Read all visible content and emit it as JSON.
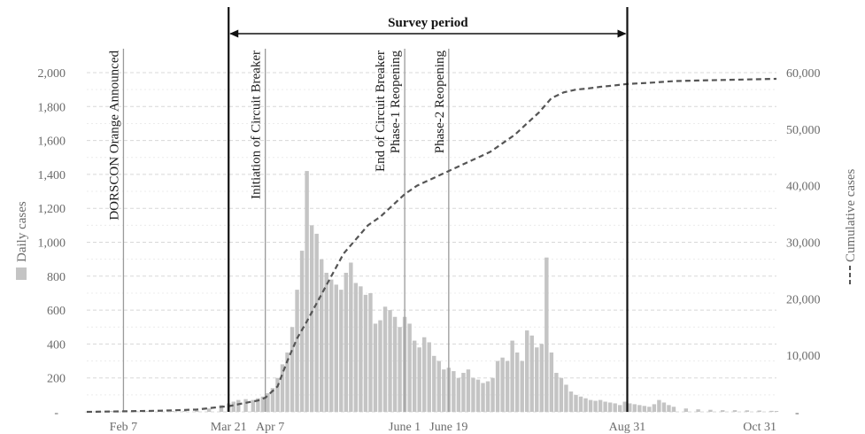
{
  "chart_data": {
    "type": "bar",
    "x_unit": "day",
    "x_range": [
      "Jan 23",
      "Oct 31"
    ],
    "y_left": {
      "label": "Daily cases",
      "range": [
        0,
        2000
      ],
      "ticks": [
        "-",
        "200",
        "400",
        "600",
        "800",
        "1,000",
        "1,200",
        "1,400",
        "1,600",
        "1,800",
        "2,000"
      ]
    },
    "y_right": {
      "label": "Cumulative cases",
      "range": [
        0,
        60000
      ],
      "ticks": [
        "-",
        "10,000",
        "20,000",
        "30,000",
        "40,000",
        "50,000",
        "60,000"
      ]
    },
    "x_ticks": [
      {
        "label": "Feb 7",
        "day": 15
      },
      {
        "label": "Mar 21",
        "day": 58
      },
      {
        "label": "Apr 7",
        "day": 75
      },
      {
        "label": "June 1",
        "day": 130
      },
      {
        "label": "June 19",
        "day": 148
      },
      {
        "label": "Aug 31",
        "day": 221
      },
      {
        "label": "Oct 31",
        "day": 282
      }
    ],
    "events": [
      {
        "lines": [
          "DORSCON Orange Announced"
        ],
        "day": 15,
        "bold": false
      },
      {
        "lines": [
          "Initiation of Circuit Breaker"
        ],
        "day": 73,
        "bold": false
      },
      {
        "lines": [
          "End of Circuit Breaker",
          "Phase-1 Reopening"
        ],
        "day": 130,
        "bold": false
      },
      {
        "lines": [
          "Phase-2 Reopening"
        ],
        "day": 148,
        "bold": false
      }
    ],
    "survey_period": {
      "label": "Survey period",
      "start_day": 58,
      "end_day": 221
    },
    "series": [
      {
        "name": "Daily cases",
        "kind": "bar",
        "color": "#c4c4c4",
        "points": [
          [
            0,
            1
          ],
          [
            5,
            3
          ],
          [
            10,
            5
          ],
          [
            15,
            4
          ],
          [
            20,
            6
          ],
          [
            25,
            4
          ],
          [
            30,
            3
          ],
          [
            35,
            5
          ],
          [
            40,
            6
          ],
          [
            45,
            8
          ],
          [
            50,
            20
          ],
          [
            55,
            40
          ],
          [
            58,
            50
          ],
          [
            60,
            60
          ],
          [
            62,
            70
          ],
          [
            65,
            75
          ],
          [
            68,
            70
          ],
          [
            70,
            80
          ],
          [
            72,
            90
          ],
          [
            74,
            110
          ],
          [
            76,
            140
          ],
          [
            78,
            200
          ],
          [
            80,
            280
          ],
          [
            82,
            350
          ],
          [
            84,
            500
          ],
          [
            86,
            720
          ],
          [
            88,
            950
          ],
          [
            90,
            1420
          ],
          [
            92,
            1100
          ],
          [
            94,
            1050
          ],
          [
            96,
            900
          ],
          [
            98,
            820
          ],
          [
            100,
            780
          ],
          [
            102,
            750
          ],
          [
            104,
            720
          ],
          [
            106,
            820
          ],
          [
            108,
            880
          ],
          [
            110,
            760
          ],
          [
            112,
            740
          ],
          [
            114,
            690
          ],
          [
            116,
            700
          ],
          [
            118,
            520
          ],
          [
            120,
            540
          ],
          [
            122,
            620
          ],
          [
            124,
            600
          ],
          [
            126,
            560
          ],
          [
            128,
            500
          ],
          [
            130,
            560
          ],
          [
            132,
            520
          ],
          [
            134,
            420
          ],
          [
            136,
            380
          ],
          [
            138,
            440
          ],
          [
            140,
            410
          ],
          [
            142,
            330
          ],
          [
            144,
            300
          ],
          [
            146,
            250
          ],
          [
            148,
            260
          ],
          [
            150,
            240
          ],
          [
            152,
            200
          ],
          [
            154,
            230
          ],
          [
            156,
            250
          ],
          [
            158,
            200
          ],
          [
            160,
            190
          ],
          [
            162,
            170
          ],
          [
            164,
            180
          ],
          [
            166,
            200
          ],
          [
            168,
            300
          ],
          [
            170,
            320
          ],
          [
            172,
            300
          ],
          [
            174,
            420
          ],
          [
            176,
            350
          ],
          [
            178,
            300
          ],
          [
            180,
            480
          ],
          [
            182,
            450
          ],
          [
            184,
            380
          ],
          [
            186,
            400
          ],
          [
            188,
            910
          ],
          [
            190,
            350
          ],
          [
            192,
            230
          ],
          [
            194,
            200
          ],
          [
            196,
            160
          ],
          [
            198,
            120
          ],
          [
            200,
            100
          ],
          [
            202,
            90
          ],
          [
            204,
            80
          ],
          [
            206,
            70
          ],
          [
            208,
            65
          ],
          [
            210,
            70
          ],
          [
            212,
            60
          ],
          [
            214,
            55
          ],
          [
            216,
            50
          ],
          [
            218,
            40
          ],
          [
            220,
            60
          ],
          [
            222,
            50
          ],
          [
            224,
            45
          ],
          [
            226,
            40
          ],
          [
            228,
            35
          ],
          [
            230,
            30
          ],
          [
            232,
            45
          ],
          [
            234,
            70
          ],
          [
            236,
            55
          ],
          [
            238,
            40
          ],
          [
            240,
            30
          ],
          [
            245,
            20
          ],
          [
            250,
            15
          ],
          [
            255,
            12
          ],
          [
            260,
            10
          ],
          [
            265,
            10
          ],
          [
            270,
            9
          ],
          [
            275,
            8
          ],
          [
            280,
            6
          ],
          [
            282,
            5
          ]
        ]
      },
      {
        "name": "Cumulative cases",
        "kind": "line",
        "style": "dashed",
        "color": "#555555",
        "points": [
          [
            0,
            0
          ],
          [
            15,
            100
          ],
          [
            30,
            200
          ],
          [
            45,
            400
          ],
          [
            55,
            900
          ],
          [
            58,
            1000
          ],
          [
            65,
            1600
          ],
          [
            70,
            2000
          ],
          [
            73,
            2500
          ],
          [
            78,
            4500
          ],
          [
            82,
            9000
          ],
          [
            86,
            13000
          ],
          [
            90,
            16000
          ],
          [
            95,
            20000
          ],
          [
            100,
            24000
          ],
          [
            105,
            28000
          ],
          [
            110,
            30500
          ],
          [
            115,
            33000
          ],
          [
            120,
            34500
          ],
          [
            125,
            36500
          ],
          [
            130,
            38500
          ],
          [
            135,
            40000
          ],
          [
            140,
            41000
          ],
          [
            145,
            42000
          ],
          [
            150,
            43000
          ],
          [
            155,
            44000
          ],
          [
            160,
            45000
          ],
          [
            165,
            46000
          ],
          [
            170,
            47500
          ],
          [
            175,
            49000
          ],
          [
            180,
            51000
          ],
          [
            185,
            53000
          ],
          [
            190,
            55500
          ],
          [
            195,
            56500
          ],
          [
            200,
            57000
          ],
          [
            205,
            57200
          ],
          [
            210,
            57500
          ],
          [
            215,
            57700
          ],
          [
            221,
            58000
          ],
          [
            230,
            58200
          ],
          [
            240,
            58500
          ],
          [
            250,
            58600
          ],
          [
            260,
            58700
          ],
          [
            270,
            58800
          ],
          [
            282,
            58900
          ]
        ]
      }
    ]
  }
}
